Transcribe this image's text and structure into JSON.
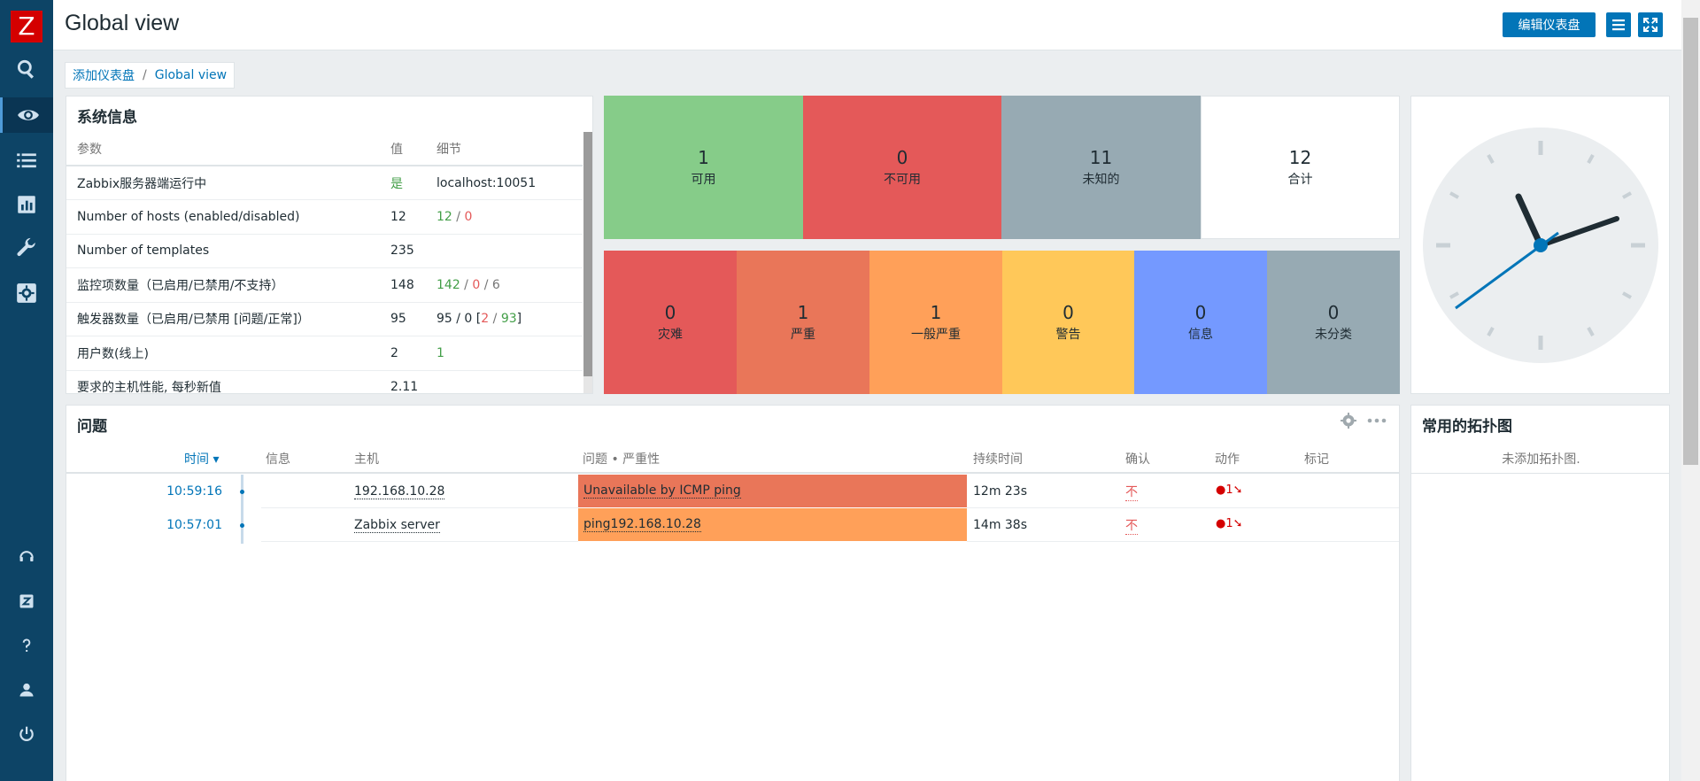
{
  "app": {
    "logo_letter": "Z"
  },
  "header": {
    "title": "Global view",
    "edit_label": "编辑仪表盘"
  },
  "sidebar": {
    "icons": [
      "search-icon",
      "eye-icon",
      "list-icon",
      "chart-icon",
      "wrench-icon",
      "gear-icon",
      "support-icon",
      "zabbix-share-icon",
      "help-icon",
      "user-icon",
      "power-icon"
    ]
  },
  "breadcrumb": {
    "parent": "添加仪表盘",
    "sep": "/",
    "current": "Global view"
  },
  "sysinfo": {
    "title": "系统信息",
    "headers": {
      "param": "参数",
      "value": "值",
      "detail": "细节"
    },
    "rows": [
      {
        "param": "Zabbix服务器端运行中",
        "value": "是",
        "detail": "localhost:10051"
      },
      {
        "param": "Number of hosts (enabled/disabled)",
        "value": "12",
        "d1": "12",
        "d2": "0"
      },
      {
        "param": "Number of templates",
        "value": "235"
      },
      {
        "param": "监控项数量（已启用/已禁用/不支持）",
        "value": "148",
        "d1": "142",
        "d2": "0",
        "d3": "6"
      },
      {
        "param": "触发器数量（已启用/已禁用 [问题/正常]）",
        "value": "95",
        "d0": "95 / 0 [",
        "d1": "2",
        "d2": "93",
        "d3": "]"
      },
      {
        "param": "用户数(线上)",
        "value": "2",
        "d1": "1"
      },
      {
        "param": "要求的主机性能, 每秒新值",
        "value": "2.11"
      }
    ],
    "slash": " / "
  },
  "host_availability": [
    {
      "count": "1",
      "label": "可用",
      "color": "#86cc89"
    },
    {
      "count": "0",
      "label": "不可用",
      "color": "#e45959"
    },
    {
      "count": "11",
      "label": "未知的",
      "color": "#97aab3"
    },
    {
      "count": "12",
      "label": "合计",
      "color": "#ffffff"
    }
  ],
  "severity": [
    {
      "count": "0",
      "label": "灾难",
      "color": "#e45959"
    },
    {
      "count": "1",
      "label": "严重",
      "color": "#e97659"
    },
    {
      "count": "1",
      "label": "一般严重",
      "color": "#ffa059"
    },
    {
      "count": "0",
      "label": "警告",
      "color": "#ffc859"
    },
    {
      "count": "0",
      "label": "信息",
      "color": "#7499ff"
    },
    {
      "count": "0",
      "label": "未分类",
      "color": "#97aab3"
    }
  ],
  "problems": {
    "title": "问题",
    "headers": {
      "time": "时间 ▾",
      "info": "信息",
      "host": "主机",
      "problem": "问题 • 严重性",
      "duration": "持续时间",
      "ack": "确认",
      "actions": "动作",
      "tags": "标记"
    },
    "rows": [
      {
        "time": "10:59:16",
        "host": "192.168.10.28",
        "problem": "Unavailable by ICMP ping",
        "color": "#e97659",
        "duration": "12m 23s",
        "ack": "不",
        "actions": "1"
      },
      {
        "time": "10:57:01",
        "host": "Zabbix server",
        "problem": "ping192.168.10.28",
        "color": "#ffa059",
        "duration": "14m 38s",
        "ack": "不",
        "actions": "1"
      }
    ]
  },
  "maps": {
    "title": "常用的拓扑图",
    "empty": "未添加拓扑图."
  }
}
